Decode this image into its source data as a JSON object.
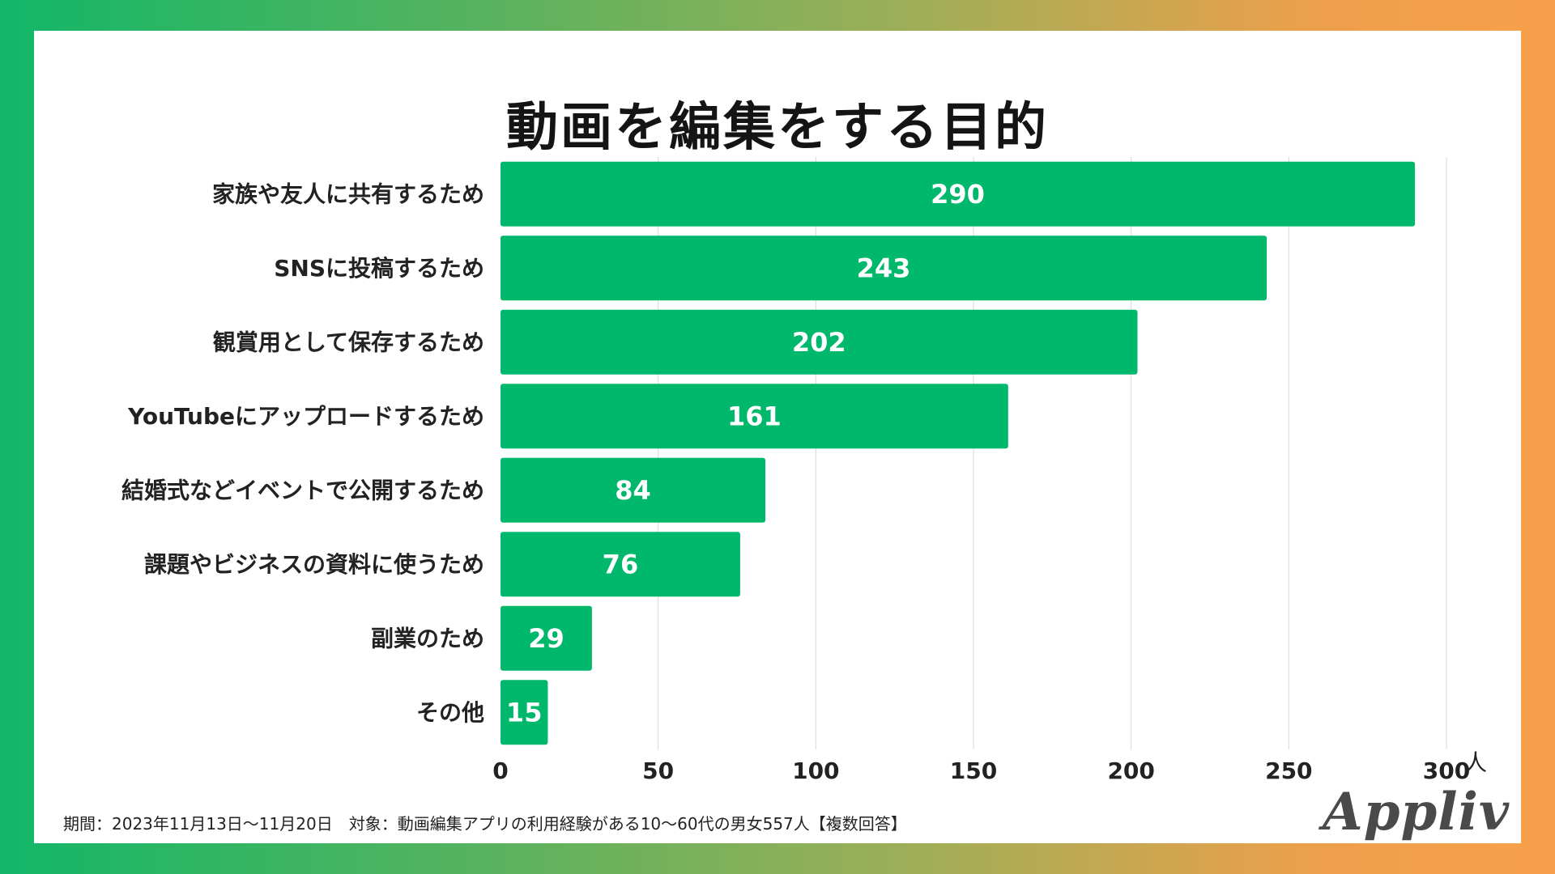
{
  "chart_data": {
    "type": "bar",
    "orientation": "horizontal",
    "title": "動画を編集をする目的",
    "categories": [
      "家族や友人に共有するため",
      "SNSに投稿するため",
      "観賞用として保存するため",
      "YouTubeにアップロードするため",
      "結婚式などイベントで公開するため",
      "課題やビジネスの資料に使うため",
      "副業のため",
      "その他"
    ],
    "values": [
      290,
      243,
      202,
      161,
      84,
      76,
      29,
      15
    ],
    "xlim": [
      0,
      300
    ],
    "xticks": [
      0,
      50,
      100,
      150,
      200,
      250,
      300
    ],
    "xunit": "人",
    "grid": true,
    "bar_color": "#00b86b",
    "label_color": "#ffffff"
  },
  "footer": {
    "note": "期間：2023年11月13日〜11月20日　対象：動画編集アプリの利用経験がある10〜60代の男女557人【複数回答】"
  },
  "brand": {
    "logo_text": "Appliv"
  }
}
